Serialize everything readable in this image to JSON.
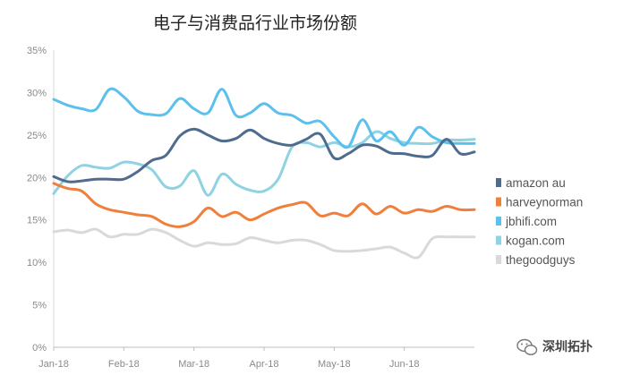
{
  "chart_data": {
    "type": "line",
    "title": "电子与消费品行业市场份额",
    "xlabel": "",
    "ylabel": "",
    "ylim": [
      0,
      35
    ],
    "y_ticks": [
      "0%",
      "5%",
      "10%",
      "15%",
      "20%",
      "25%",
      "30%",
      "35%"
    ],
    "x_ticks": [
      "Jan-18",
      "Feb-18",
      "Mar-18",
      "Apr-18",
      "May-18",
      "Jun-18"
    ],
    "grid": false,
    "legend_position": "right",
    "x_start": 0,
    "x_end": 6,
    "series": [
      {
        "name": "amazon au",
        "color": "#4f6b8e",
        "x": [
          0,
          0.2,
          0.4,
          0.6,
          0.8,
          1.0,
          1.2,
          1.4,
          1.6,
          1.8,
          2.0,
          2.2,
          2.4,
          2.6,
          2.8,
          3.0,
          3.2,
          3.4,
          3.6,
          3.8,
          4.0,
          4.2,
          4.4,
          4.6,
          4.8,
          5.0,
          5.2,
          5.4,
          5.6,
          5.8,
          6.0
        ],
        "values": [
          20.1,
          19.5,
          19.6,
          19.8,
          19.8,
          19.8,
          20.7,
          22.0,
          22.6,
          24.9,
          25.7,
          25.0,
          24.3,
          24.6,
          25.6,
          24.6,
          24.0,
          23.8,
          24.5,
          25.1,
          22.3,
          22.8,
          23.8,
          23.7,
          22.9,
          22.8,
          22.5,
          22.6,
          24.5,
          22.8,
          23.0
        ]
      },
      {
        "name": "harveynorman",
        "color": "#f07f3c",
        "x": [
          0,
          0.2,
          0.4,
          0.6,
          0.8,
          1.0,
          1.2,
          1.4,
          1.6,
          1.8,
          2.0,
          2.2,
          2.4,
          2.6,
          2.8,
          3.0,
          3.2,
          3.4,
          3.6,
          3.8,
          4.0,
          4.2,
          4.4,
          4.6,
          4.8,
          5.0,
          5.2,
          5.4,
          5.6,
          5.8,
          6.0
        ],
        "values": [
          19.3,
          18.7,
          18.4,
          16.9,
          16.2,
          15.9,
          15.6,
          15.4,
          14.5,
          14.2,
          14.8,
          16.4,
          15.4,
          15.9,
          15.0,
          15.7,
          16.4,
          16.8,
          17.0,
          15.5,
          15.8,
          15.5,
          16.9,
          15.7,
          16.6,
          15.8,
          16.2,
          16.0,
          16.6,
          16.2,
          16.2
        ]
      },
      {
        "name": "jbhifi.com",
        "color": "#5bc0ec",
        "x": [
          0,
          0.2,
          0.4,
          0.6,
          0.8,
          1.0,
          1.2,
          1.4,
          1.6,
          1.8,
          2.0,
          2.2,
          2.4,
          2.6,
          2.8,
          3.0,
          3.2,
          3.4,
          3.6,
          3.8,
          4.0,
          4.2,
          4.4,
          4.6,
          4.8,
          5.0,
          5.2,
          5.4,
          5.6,
          5.8,
          6.0
        ],
        "values": [
          29.2,
          28.5,
          28.1,
          28.0,
          30.4,
          29.5,
          27.8,
          27.4,
          27.5,
          29.3,
          28.1,
          27.6,
          30.4,
          27.3,
          27.6,
          28.7,
          27.6,
          27.3,
          26.4,
          26.6,
          24.8,
          23.6,
          26.8,
          24.3,
          25.4,
          23.8,
          25.9,
          24.8,
          24.1,
          24.0,
          24.0
        ]
      },
      {
        "name": "kogan.com",
        "color": "#8fd2e2",
        "x": [
          0,
          0.2,
          0.4,
          0.6,
          0.8,
          1.0,
          1.2,
          1.4,
          1.6,
          1.8,
          2.0,
          2.2,
          2.4,
          2.6,
          2.8,
          3.0,
          3.2,
          3.4,
          3.6,
          3.8,
          4.0,
          4.2,
          4.4,
          4.6,
          4.8,
          5.0,
          5.2,
          5.4,
          5.6,
          5.8,
          6.0
        ],
        "values": [
          18.1,
          20.2,
          21.4,
          21.2,
          21.1,
          21.8,
          21.6,
          20.9,
          18.9,
          19.0,
          20.8,
          17.9,
          20.4,
          19.2,
          18.5,
          18.4,
          19.8,
          23.6,
          24.1,
          23.6,
          24.1,
          23.6,
          24.1,
          25.4,
          24.6,
          24.1,
          24.0,
          24.0,
          24.4,
          24.4,
          24.5
        ]
      },
      {
        "name": "thegoodguys",
        "color": "#d9d9d9",
        "x": [
          0,
          0.2,
          0.4,
          0.6,
          0.8,
          1.0,
          1.2,
          1.4,
          1.6,
          1.8,
          2.0,
          2.2,
          2.4,
          2.6,
          2.8,
          3.0,
          3.2,
          3.4,
          3.6,
          3.8,
          4.0,
          4.2,
          4.4,
          4.6,
          4.8,
          5.0,
          5.2,
          5.4,
          5.6,
          5.8,
          6.0
        ],
        "values": [
          13.6,
          13.8,
          13.5,
          13.9,
          13.0,
          13.3,
          13.3,
          13.9,
          13.5,
          12.6,
          11.9,
          12.3,
          12.1,
          12.2,
          12.9,
          12.6,
          12.3,
          12.6,
          12.6,
          12.1,
          11.4,
          11.3,
          11.4,
          11.6,
          11.8,
          11.1,
          10.6,
          12.8,
          13.0,
          13.0,
          13.0
        ]
      }
    ]
  },
  "watermark": {
    "icon": "wechat-icon",
    "text": "深圳拓扑"
  }
}
